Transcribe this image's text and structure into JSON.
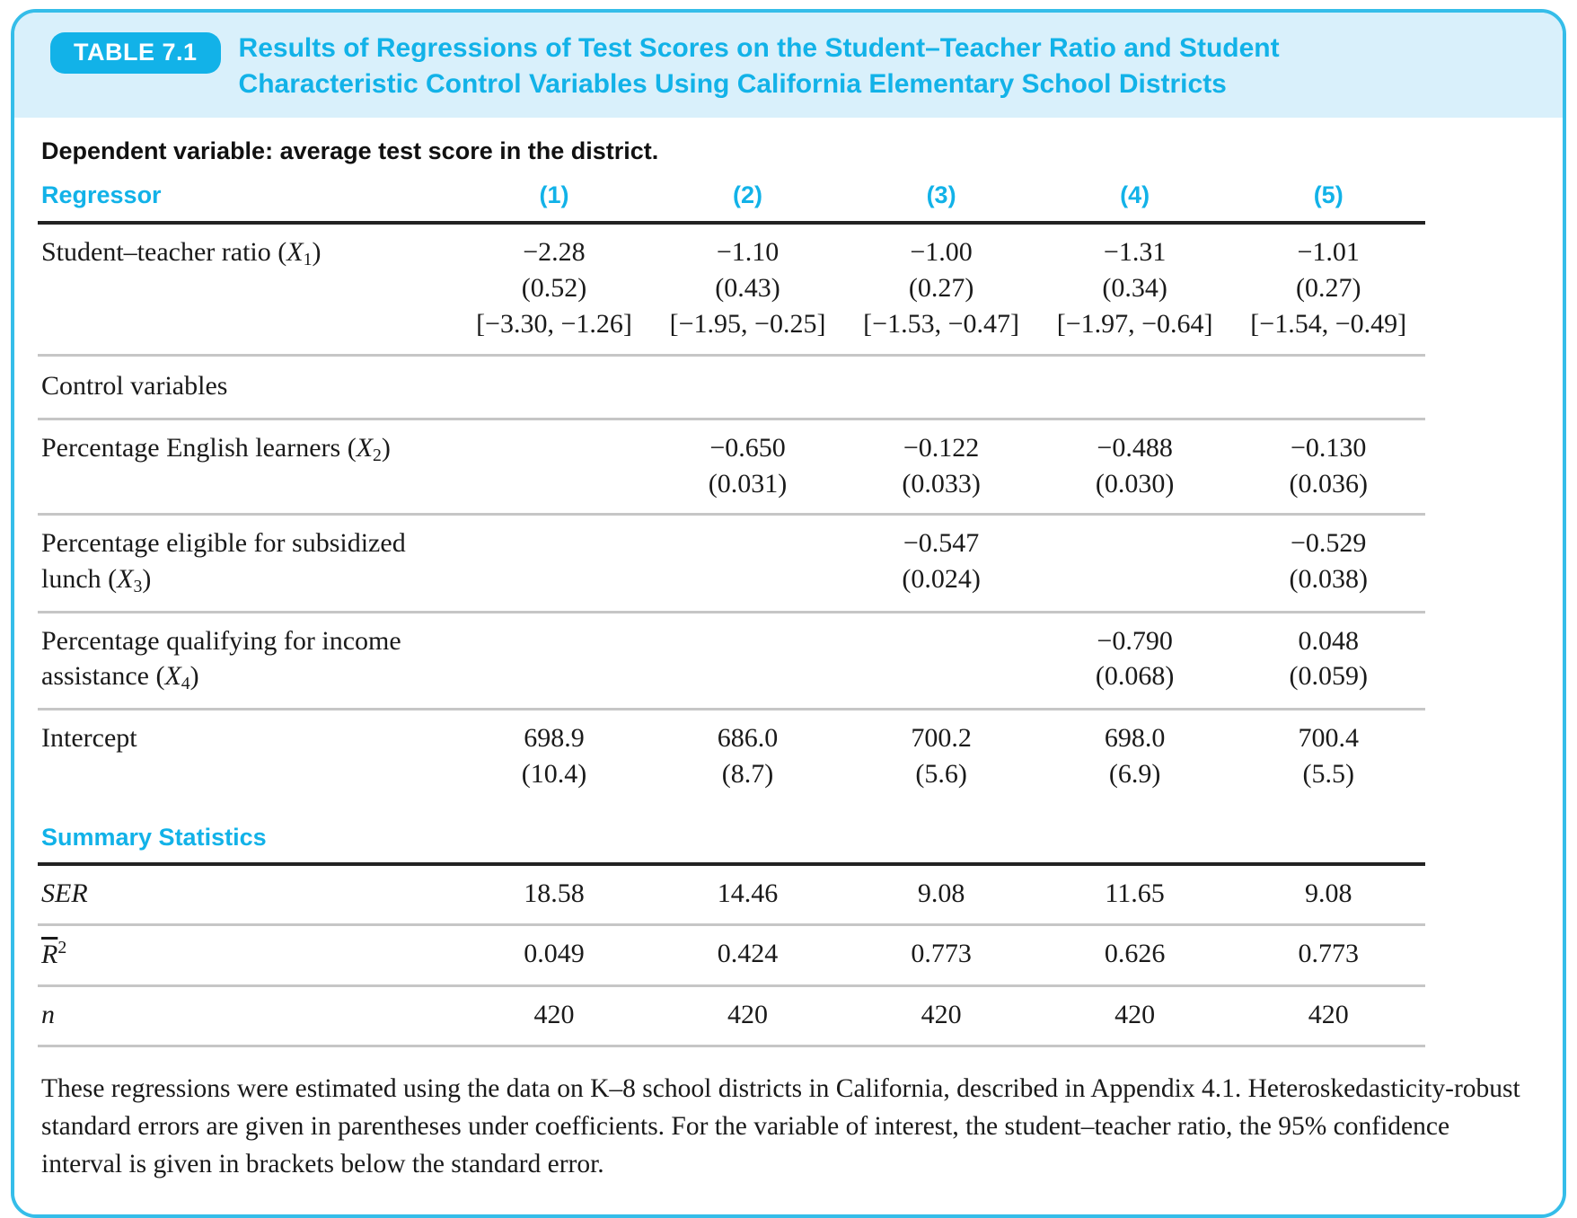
{
  "accent_color": "#12b2e8",
  "header_bg_color": "#d9f0fb",
  "border_color": "#35bde9",
  "header": {
    "badge_label": "TABLE 7.1",
    "title_line1": "Results of Regressions of Test Scores on the Student–Teacher Ratio and Student",
    "title_line2": "Characteristic Control Variables Using California Elementary School Districts"
  },
  "dependent_note": "Dependent variable: average test score in the district.",
  "columns_header": {
    "regressor_label": "Regressor",
    "columns": [
      "(1)",
      "(2)",
      "(3)",
      "(4)",
      "(5)"
    ]
  },
  "rows": [
    {
      "name": "student-teacher-ratio",
      "kind": "data",
      "rule_below": "gray",
      "label": [
        {
          "t": "Student–teacher ratio ("
        },
        {
          "t": "X",
          "i": true
        },
        {
          "t": "1",
          "sub": true
        },
        {
          "t": ")"
        }
      ],
      "cells": [
        [
          "−2.28",
          "(0.52)",
          "[−3.30, −1.26]"
        ],
        [
          "−1.10",
          "(0.43)",
          "[−1.95, −0.25]"
        ],
        [
          "−1.00",
          "(0.27)",
          "[−1.53, −0.47]"
        ],
        [
          "−1.31",
          "(0.34)",
          "[−1.97, −0.64]"
        ],
        [
          "−1.01",
          "(0.27)",
          "[−1.54, −0.49]"
        ]
      ]
    },
    {
      "name": "control-variables",
      "kind": "section-serif",
      "rule_below": "gray",
      "label": [
        {
          "t": "Control variables"
        }
      ],
      "cells": [
        [],
        [],
        [],
        [],
        []
      ]
    },
    {
      "name": "pct-english-learners",
      "kind": "data",
      "rule_below": "gray",
      "label": [
        {
          "t": "Percentage English learners ("
        },
        {
          "t": "X",
          "i": true
        },
        {
          "t": "2",
          "sub": true
        },
        {
          "t": ")"
        }
      ],
      "cells": [
        [],
        [
          "−0.650",
          "(0.031)"
        ],
        [
          "−0.122",
          "(0.033)"
        ],
        [
          "−0.488",
          "(0.030)"
        ],
        [
          "−0.130",
          "(0.036)"
        ]
      ]
    },
    {
      "name": "pct-subsidized-lunch",
      "kind": "data",
      "rule_below": "gray",
      "label": [
        {
          "t": "Percentage eligible for subsidized"
        },
        {
          "br": true
        },
        {
          "t": "lunch ("
        },
        {
          "t": "X",
          "i": true
        },
        {
          "t": "3",
          "sub": true
        },
        {
          "t": ")"
        }
      ],
      "cells": [
        [],
        [],
        [
          "−0.547",
          "(0.024)"
        ],
        [],
        [
          "−0.529",
          "(0.038)"
        ]
      ]
    },
    {
      "name": "pct-income-assistance",
      "kind": "data",
      "rule_below": "gray",
      "label": [
        {
          "t": "Percentage qualifying for income"
        },
        {
          "br": true
        },
        {
          "t": "assistance ("
        },
        {
          "t": "X",
          "i": true
        },
        {
          "t": "4",
          "sub": true
        },
        {
          "t": ")"
        }
      ],
      "cells": [
        [],
        [],
        [],
        [
          "−0.790",
          "(0.068)"
        ],
        [
          "0.048",
          "(0.059)"
        ]
      ]
    },
    {
      "name": "intercept",
      "kind": "data",
      "rule_below": "none",
      "label": [
        {
          "t": "Intercept"
        }
      ],
      "cells": [
        [
          "698.9",
          "(10.4)"
        ],
        [
          "686.0",
          "(8.7)"
        ],
        [
          "700.2",
          "(5.6)"
        ],
        [
          "698.0",
          "(6.9)"
        ],
        [
          "700.4",
          "(5.5)"
        ]
      ]
    },
    {
      "name": "summary-statistics",
      "kind": "section-heading",
      "rule_below": "dark",
      "label": [
        {
          "t": "Summary Statistics"
        }
      ],
      "cells": [
        [],
        [],
        [],
        [],
        []
      ]
    },
    {
      "name": "ser",
      "kind": "data",
      "rule_below": "gray",
      "label": [
        {
          "t": "SER",
          "i": true
        }
      ],
      "cells": [
        [
          "18.58"
        ],
        [
          "14.46"
        ],
        [
          "9.08"
        ],
        [
          "11.65"
        ],
        [
          "9.08"
        ]
      ]
    },
    {
      "name": "r-bar-squared",
      "kind": "data",
      "rule_below": "gray",
      "label": [
        {
          "t": "R",
          "i": true,
          "over": true
        },
        {
          "t": "2",
          "sup": true
        }
      ],
      "cells": [
        [
          "0.049"
        ],
        [
          "0.424"
        ],
        [
          "0.773"
        ],
        [
          "0.626"
        ],
        [
          "0.773"
        ]
      ]
    },
    {
      "name": "n",
      "kind": "data",
      "rule_below": "gray",
      "label": [
        {
          "t": "n",
          "i": true
        }
      ],
      "cells": [
        [
          "420"
        ],
        [
          "420"
        ],
        [
          "420"
        ],
        [
          "420"
        ],
        [
          "420"
        ]
      ]
    }
  ],
  "footnote": "These regressions were estimated using the data on K–8 school districts in California, described in Appendix 4.1. Heteroskedasticity-robust standard errors are given in parentheses under coefficients. For the variable of interest, the student–teacher ratio, the 95% confidence interval is given in brackets below the standard error."
}
